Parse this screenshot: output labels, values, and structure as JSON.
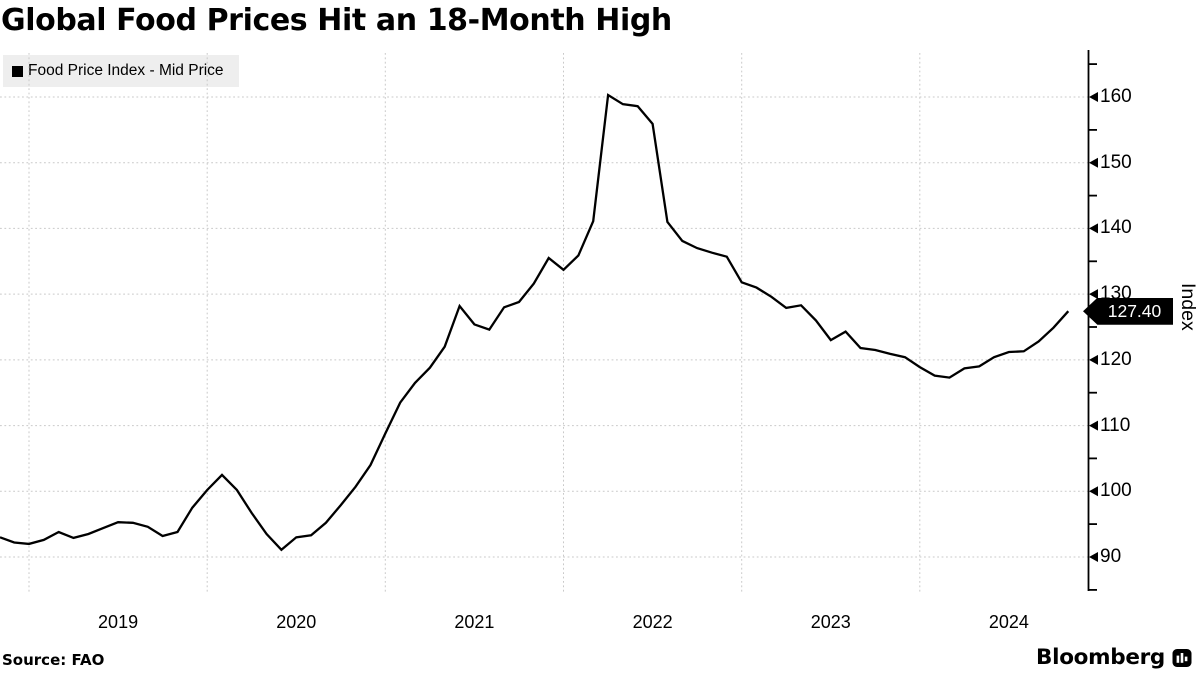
{
  "header": {
    "title": "Global Food Prices Hit an 18-Month High"
  },
  "legend": {
    "label": "Food Price Index - Mid Price",
    "swatch_color": "#000000"
  },
  "axes": {
    "y": {
      "label": "Index",
      "ticks": [
        160,
        150,
        140,
        130,
        120,
        110,
        100,
        90
      ],
      "minor_ticks": [
        165,
        155,
        145,
        135,
        125,
        115,
        105,
        95,
        85
      ]
    },
    "x": {
      "ticks": [
        "2019",
        "2020",
        "2021",
        "2022",
        "2023",
        "2024"
      ]
    }
  },
  "last_value_badge": {
    "text": "127.40",
    "bg": "#000000",
    "fg": "#ffffff"
  },
  "footer": {
    "source": "Source: FAO",
    "brand": "Bloomberg"
  },
  "chart_data": {
    "type": "line",
    "title": "Global Food Prices Hit an 18-Month High",
    "series_name": "Food Price Index - Mid Price",
    "ylabel": "Index",
    "frequency": "monthly",
    "start_month": "2018-10",
    "end_month": "2024-10",
    "values": [
      93.0,
      92.2,
      92.0,
      92.6,
      93.8,
      92.9,
      93.5,
      94.4,
      95.3,
      95.2,
      94.6,
      93.2,
      93.8,
      97.5,
      100.2,
      102.5,
      100.2,
      96.7,
      93.5,
      91.1,
      93.0,
      93.3,
      95.2,
      97.9,
      100.7,
      104.0,
      108.8,
      113.5,
      116.5,
      118.8,
      122.0,
      128.2,
      125.4,
      124.6,
      128.0,
      128.8,
      131.6,
      135.5,
      133.7,
      135.9,
      141.1,
      160.3,
      158.9,
      158.6,
      155.9,
      141.0,
      138.1,
      137.0,
      136.3,
      135.7,
      131.8,
      131.0,
      129.6,
      127.9,
      128.3,
      126.0,
      123.0,
      124.3,
      121.8,
      121.5,
      120.9,
      120.4,
      118.9,
      117.6,
      117.3,
      118.7,
      119.0,
      120.4,
      121.2,
      121.3,
      122.8,
      124.9,
      127.4
    ],
    "last_value": 127.4,
    "ylim": [
      85,
      166.5
    ],
    "y_ticks": [
      90,
      100,
      110,
      120,
      130,
      140,
      150,
      160
    ],
    "x_tick_years": [
      2019,
      2020,
      2021,
      2022,
      2023,
      2024
    ],
    "line_color": "#000000",
    "grid": "dotted",
    "legend_position": "top-left",
    "y_axis_position": "right"
  }
}
